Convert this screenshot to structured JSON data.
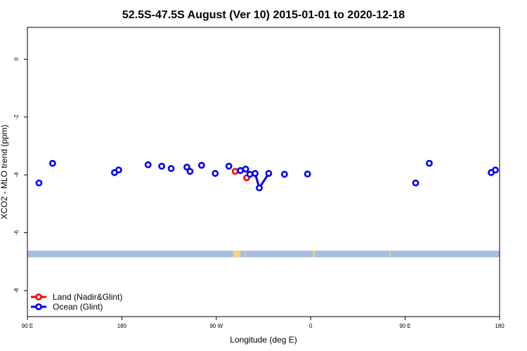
{
  "chart_data": {
    "type": "line",
    "title": "52.5S-47.5S August (Ver 10)   2015-01-01 to 2020-12-18",
    "xlabel": "Longitude (deg E)",
    "ylabel": "XCO2 - MLO trend (ppm)",
    "xlim": [
      90,
      540
    ],
    "ylim": [
      -8.9,
      1.1
    ],
    "xticks": [
      {
        "value": 90,
        "label": "90 E"
      },
      {
        "value": 180,
        "label": "180"
      },
      {
        "value": 270,
        "label": "90 W"
      },
      {
        "value": 360,
        "label": "0"
      },
      {
        "value": 450,
        "label": "90 E"
      },
      {
        "value": 540,
        "label": "180"
      }
    ],
    "yticks": [
      {
        "value": 0,
        "label": "0"
      },
      {
        "value": -2,
        "label": "-2"
      },
      {
        "value": -4,
        "label": "-4"
      },
      {
        "value": -6,
        "label": "-6"
      },
      {
        "value": -8,
        "label": "-8"
      }
    ],
    "land_band": {
      "y_from": -6.62,
      "y_to": -6.85,
      "ocean_color": "#a7bee0",
      "land_color": "#f2d27a",
      "land_segments": [
        [
          286,
          293
        ],
        [
          297,
          298
        ],
        [
          362,
          364
        ],
        [
          435,
          436
        ]
      ]
    },
    "series": [
      {
        "name": "Land (Nadir&Glint)",
        "color": "#ff0000",
        "x": [
          288,
          299
        ],
        "y": [
          -3.88,
          -4.1
        ]
      },
      {
        "name": "Ocean (Glint)",
        "color": "#0000ee",
        "x": [
          101,
          114,
          173,
          177,
          205,
          218,
          227,
          242,
          245,
          256,
          269,
          282,
          293,
          298,
          302,
          307,
          311,
          320,
          335,
          357,
          460,
          473,
          532,
          536
        ],
        "y": [
          -4.28,
          -3.6,
          -3.92,
          -3.83,
          -3.65,
          -3.7,
          -3.78,
          -3.73,
          -3.88,
          -3.67,
          -3.95,
          -3.7,
          -3.85,
          -3.8,
          -3.98,
          -3.95,
          -4.45,
          -3.95,
          -3.98,
          -3.97,
          -4.28,
          -3.6,
          -3.92,
          -3.83
        ],
        "segments": [
          [
            14,
            15,
            16,
            17
          ]
        ]
      }
    ],
    "legend_position": "bottom-left",
    "grid": false
  }
}
